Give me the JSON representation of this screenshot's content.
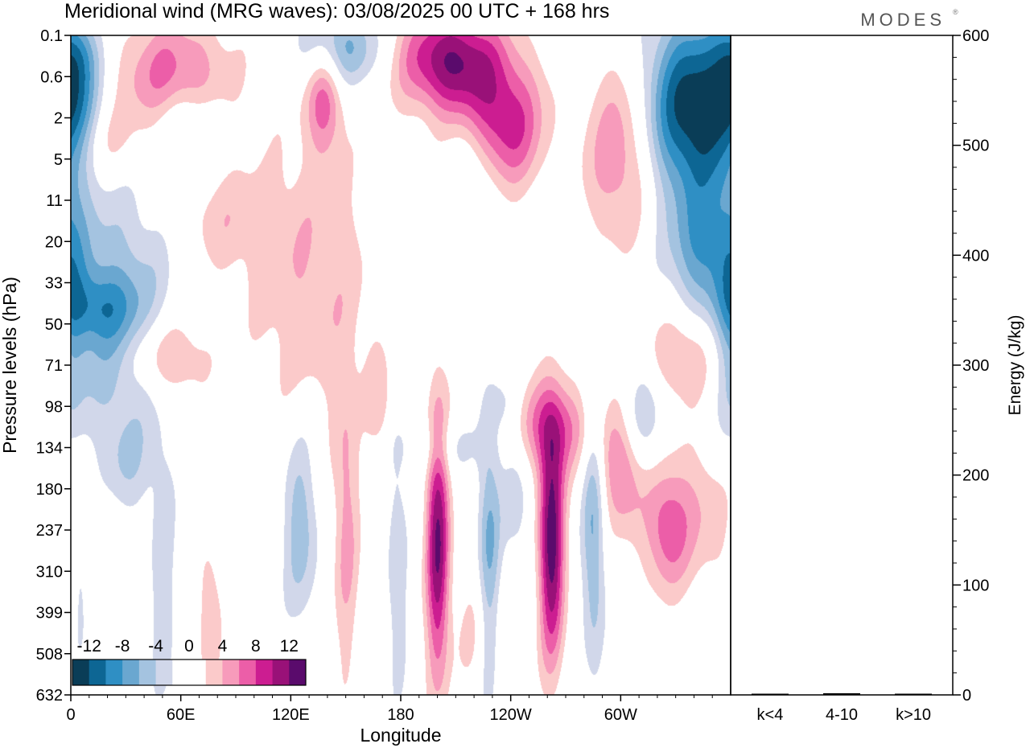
{
  "brand": "MODES",
  "chart_data": [
    {
      "type": "heatmap",
      "title": "Meridional wind (MRG waves):  03/08/2025  00 UTC  + 168 hrs",
      "xlabel": "Longitude",
      "ylabel": "Pressure levels (hPa)",
      "x_ticks": [
        "0",
        "60E",
        "120E",
        "180",
        "120W",
        "60W"
      ],
      "x_tick_values": [
        0,
        60,
        120,
        180,
        240,
        300
      ],
      "xlim": [
        0,
        360
      ],
      "y_levels": [
        "0.1",
        "0.6",
        "2",
        "5",
        "11",
        "20",
        "33",
        "50",
        "71",
        "98",
        "134",
        "180",
        "237",
        "310",
        "399",
        "508",
        "632"
      ],
      "colorbar": {
        "labels": [
          "-12",
          "-8",
          "-4",
          "0",
          "4",
          "8",
          "12"
        ],
        "label_values": [
          -12,
          -8,
          -4,
          0,
          4,
          8,
          12
        ],
        "range": [
          -14,
          14
        ],
        "step": 2,
        "colors": [
          "#0a3d57",
          "#0d6694",
          "#2f8fc4",
          "#6aa7d0",
          "#a4c3e0",
          "#d1d7ea",
          "#ffffff",
          "#ffffff",
          "#fbcaca",
          "#f79bbb",
          "#ec5ea8",
          "#cc1d91",
          "#991178",
          "#5a0b6c"
        ]
      },
      "features": [
        {
          "lon": 207,
          "lev": 0.6,
          "sx": 20,
          "sy": 0.9,
          "amp": 12
        },
        {
          "lon": 237,
          "lev": 2.2,
          "sx": 15,
          "sy": 1.1,
          "amp": 9
        },
        {
          "lon": 138,
          "lev": 1.5,
          "sx": 7,
          "sy": 0.9,
          "amp": 7
        },
        {
          "lon": 55,
          "lev": 1.0,
          "sx": 22,
          "sy": 1.0,
          "amp": 7
        },
        {
          "lon": 300,
          "lev": 2.8,
          "sx": 14,
          "sy": 1.6,
          "amp": 6.5
        },
        {
          "lon": 130,
          "lev": 6.0,
          "sx": 25,
          "sy": 2.6,
          "amp": 3.8
        },
        {
          "lon": 20,
          "lev": 2.6,
          "sx": 12,
          "sy": 0.7,
          "amp": 3.5
        },
        {
          "lon": 340,
          "lev": 11.5,
          "sx": 22,
          "sy": 1.4,
          "amp": 3.8
        },
        {
          "lon": 55,
          "lev": 7.8,
          "sx": 14,
          "sy": 1.0,
          "amp": 3.4
        },
        {
          "lon": 80,
          "lev": 4.5,
          "sx": 20,
          "sy": 1.0,
          "amp": 3.0
        },
        {
          "lon": 168,
          "lev": 9.0,
          "sx": 5,
          "sy": 0.9,
          "amp": 3.0
        },
        {
          "lon": 340,
          "lev": 1.8,
          "sx": 20,
          "sy": 1.6,
          "amp": -14
        },
        {
          "lon": 345,
          "lev": 5.2,
          "sx": 14,
          "sy": 1.0,
          "amp": -6
        },
        {
          "lon": 148,
          "lev": 0.3,
          "sx": 16,
          "sy": 0.7,
          "amp": -7
        },
        {
          "lon": 4,
          "lev": 0.4,
          "sx": 8,
          "sy": 0.6,
          "amp": -5
        },
        {
          "lon": 2,
          "lev": 1.5,
          "sx": 8,
          "sy": 0.8,
          "amp": -5
        },
        {
          "lon": 20,
          "lev": 7.0,
          "sx": 30,
          "sy": 2.0,
          "amp": -3.6
        },
        {
          "lon": 30,
          "lev": 7.0,
          "sx": 20,
          "sy": 2.5,
          "amp": -2.8
        },
        {
          "lon": 65,
          "lev": 2.2,
          "sx": 12,
          "sy": 0.7,
          "amp": -4.5
        },
        {
          "lon": 220,
          "lev": 3.5,
          "sx": 10,
          "sy": 0.9,
          "amp": -3.2
        },
        {
          "lon": 14,
          "lev": 6.6,
          "sx": 14,
          "sy": 0.6,
          "amp": -4.5
        },
        {
          "lon": 200,
          "lev": 10.0,
          "sx": 18,
          "sy": 0.5,
          "amp": -2.6
        },
        {
          "lon": 360,
          "lev": 7.0,
          "sx": 6,
          "sy": 2.5,
          "amp": -3.0
        },
        {
          "lon": 200,
          "lev": 12.3,
          "sx": 4.5,
          "sy": 2.4,
          "amp": 12
        },
        {
          "lon": 262,
          "lev": 12.3,
          "sx": 5,
          "sy": 2.0,
          "amp": 13.5
        },
        {
          "lon": 262,
          "lev": 9.5,
          "sx": 16,
          "sy": 0.8,
          "amp": 7
        },
        {
          "lon": 150,
          "lev": 12.0,
          "sx": 5,
          "sy": 2.6,
          "amp": 4.6
        },
        {
          "lon": 75,
          "lev": 14.0,
          "sx": 5,
          "sy": 1.4,
          "amp": 3.6
        },
        {
          "lon": 300,
          "lev": 10.5,
          "sx": 8,
          "sy": 1.0,
          "amp": 6
        },
        {
          "lon": 325,
          "lev": 12.0,
          "sx": 8,
          "sy": 1.0,
          "amp": 5
        },
        {
          "lon": 334,
          "lev": 7.8,
          "sx": 14,
          "sy": 0.8,
          "amp": 5.5
        },
        {
          "lon": 225,
          "lev": 14.5,
          "sx": 10,
          "sy": 1.2,
          "amp": 3.2
        },
        {
          "lon": 50,
          "lev": 7.8,
          "sx": 16,
          "sy": 0.6,
          "amp": 3.4
        },
        {
          "lon": 228,
          "lev": 13.0,
          "sx": 4.5,
          "sy": 2.6,
          "amp": -7
        },
        {
          "lon": 285,
          "lev": 12.0,
          "sx": 4.5,
          "sy": 2.4,
          "amp": -6.5
        },
        {
          "lon": 125,
          "lev": 11.8,
          "sx": 7,
          "sy": 1.7,
          "amp": -5.5
        },
        {
          "lon": 178,
          "lev": 13.0,
          "sx": 4,
          "sy": 2.2,
          "amp": -4
        },
        {
          "lon": 50,
          "lev": 13.5,
          "sx": 5,
          "sy": 2.2,
          "amp": -3.6
        },
        {
          "lon": 313,
          "lev": 9.3,
          "sx": 8,
          "sy": 1.0,
          "amp": -4.4
        },
        {
          "lon": 243,
          "lev": 11.0,
          "sx": 6,
          "sy": 1.6,
          "amp": -3.2
        },
        {
          "lon": 30,
          "lev": 10.5,
          "sx": 10,
          "sy": 0.8,
          "amp": -2.6
        },
        {
          "lon": 5,
          "lev": 13.5,
          "sx": 4,
          "sy": 1.4,
          "amp": -2.6
        },
        {
          "lon": 235,
          "lev": 9.0,
          "sx": 6,
          "sy": 0.5,
          "amp": -2.4
        }
      ]
    },
    {
      "type": "bar",
      "ylabel": "Energy (J/kg)",
      "categories": [
        "k<4",
        "4-10",
        "k>10"
      ],
      "values": [
        0.5,
        1.5,
        0.3
      ],
      "ylim": [
        0,
        600
      ],
      "y_ticks": [
        0,
        100,
        200,
        300,
        400,
        500,
        600
      ]
    }
  ]
}
